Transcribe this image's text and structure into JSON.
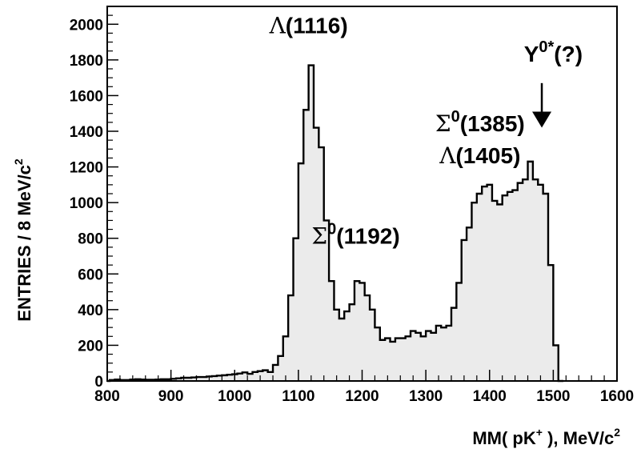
{
  "chart_data": {
    "type": "histogram",
    "xlabel": {
      "main": "MM( pK",
      "sup": "+",
      "tail": " ), MeV/c",
      "sup2": "2"
    },
    "ylabel": {
      "main": "ENTRIES / 8 MeV/c",
      "sup": "2"
    },
    "xlim": [
      800,
      1600
    ],
    "ylim": [
      0,
      2100
    ],
    "x_ticks": [
      "800",
      "900",
      "1000",
      "1100",
      "1200",
      "1300",
      "1400",
      "1500",
      "1600"
    ],
    "y_ticks": [
      "0",
      "200",
      "400",
      "600",
      "800",
      "1000",
      "1200",
      "1400",
      "1600",
      "1800",
      "2000"
    ],
    "bin_width": 8,
    "bin_start": 804,
    "values": [
      5,
      8,
      5,
      5,
      8,
      10,
      8,
      7,
      7,
      8,
      10,
      10,
      12,
      15,
      18,
      18,
      20,
      22,
      22,
      25,
      27,
      30,
      32,
      35,
      38,
      42,
      48,
      40,
      50,
      55,
      60,
      50,
      90,
      140,
      250,
      480,
      800,
      1220,
      1520,
      1770,
      1420,
      1310,
      900,
      560,
      400,
      350,
      390,
      430,
      560,
      550,
      480,
      400,
      300,
      230,
      240,
      220,
      240,
      240,
      250,
      280,
      270,
      250,
      280,
      270,
      310,
      300,
      310,
      410,
      550,
      790,
      860,
      1000,
      1050,
      1090,
      1100,
      1010,
      990,
      1040,
      1060,
      1070,
      1110,
      1130,
      1230,
      1130,
      1100,
      1050,
      650,
      200,
      0
    ],
    "annotations": [
      {
        "greek": "Λ",
        "text": "(1116)",
        "x": 1116,
        "y": 1950
      },
      {
        "greek": "Σ",
        "sup": "0",
        "text": "(1192)",
        "x": 1190,
        "y": 770
      },
      {
        "greek": "Σ",
        "sup": "0",
        "text": "(1385)",
        "x": 1385,
        "y": 1400
      },
      {
        "greek": "Λ",
        "text": "(1405)",
        "x": 1385,
        "y": 1220
      },
      {
        "text": "Y",
        "sup": "0*",
        "tail": "(?)",
        "x": 1500,
        "y": 1790
      }
    ],
    "arrow": {
      "x": 1482,
      "y_from": 1670,
      "y_to": 1420
    },
    "colors": {
      "fill": "#ebebeb",
      "stroke": "#000000"
    },
    "grid": false
  }
}
